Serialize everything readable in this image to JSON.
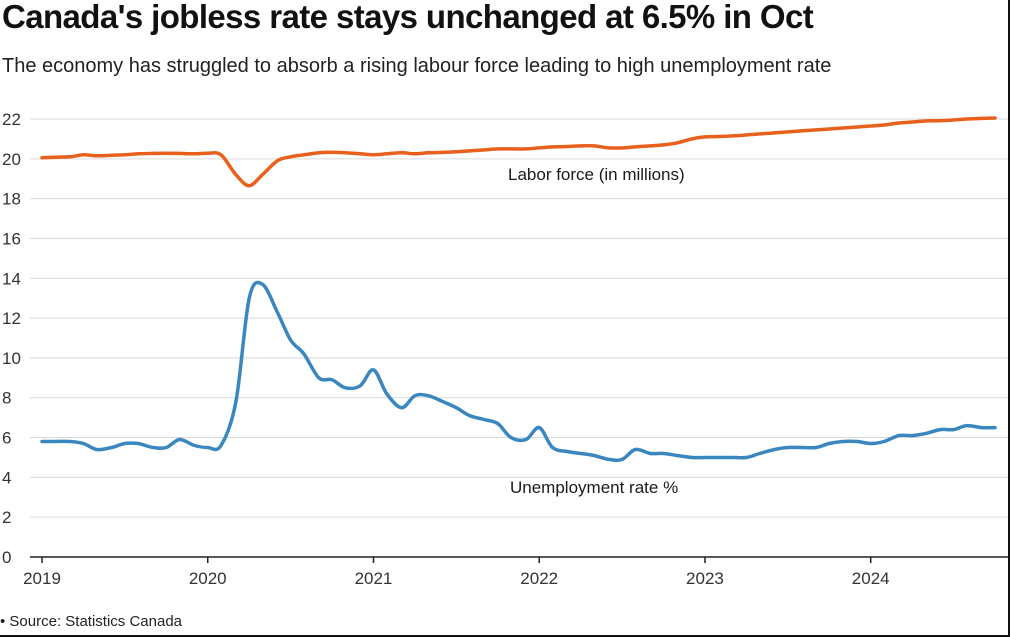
{
  "title": "Canada's jobless rate stays unchanged at 6.5% in Oct",
  "subtitle": "The economy has struggled to absorb a rising labour force leading to high unemployment rate",
  "source": "• Source: Statistics Canada",
  "colors": {
    "labor": "#e8601c",
    "unemployment": "#3a87c0",
    "grid": "#d9d9d9",
    "axis": "#222222"
  },
  "chart_data": {
    "type": "line",
    "grid": true,
    "ylim": [
      0,
      22
    ],
    "yticks": [
      0,
      2,
      4,
      6,
      8,
      10,
      12,
      14,
      16,
      18,
      20,
      22
    ],
    "xlim": [
      2019.0,
      2024.75
    ],
    "xticks": [
      "2019",
      "2020",
      "2021",
      "2022",
      "2023",
      "2024"
    ],
    "series": [
      {
        "name": "Labor force (in millions)",
        "color": "#e8601c",
        "x": [
          2019.0,
          2019.08,
          2019.17,
          2019.25,
          2019.33,
          2019.42,
          2019.5,
          2019.58,
          2019.67,
          2019.75,
          2019.83,
          2019.92,
          2020.0,
          2020.08,
          2020.17,
          2020.25,
          2020.33,
          2020.42,
          2020.5,
          2020.58,
          2020.67,
          2020.75,
          2020.83,
          2020.92,
          2021.0,
          2021.08,
          2021.17,
          2021.25,
          2021.33,
          2021.42,
          2021.5,
          2021.58,
          2021.67,
          2021.75,
          2021.83,
          2021.92,
          2022.0,
          2022.08,
          2022.17,
          2022.25,
          2022.33,
          2022.42,
          2022.5,
          2022.58,
          2022.67,
          2022.75,
          2022.83,
          2022.92,
          2023.0,
          2023.08,
          2023.17,
          2023.25,
          2023.33,
          2023.42,
          2023.5,
          2023.58,
          2023.67,
          2023.75,
          2023.83,
          2023.92,
          2024.0,
          2024.08,
          2024.17,
          2024.25,
          2024.33,
          2024.42,
          2024.5,
          2024.58,
          2024.67,
          2024.75
        ],
        "values": [
          20.05,
          20.08,
          20.1,
          20.2,
          20.15,
          20.18,
          20.2,
          20.25,
          20.27,
          20.28,
          20.27,
          20.25,
          20.28,
          20.2,
          19.2,
          18.65,
          19.2,
          19.9,
          20.1,
          20.2,
          20.3,
          20.33,
          20.3,
          20.25,
          20.2,
          20.25,
          20.3,
          20.25,
          20.3,
          20.32,
          20.35,
          20.4,
          20.45,
          20.5,
          20.5,
          20.5,
          20.55,
          20.6,
          20.62,
          20.65,
          20.65,
          20.55,
          20.55,
          20.6,
          20.65,
          20.7,
          20.8,
          21.0,
          21.1,
          21.12,
          21.15,
          21.2,
          21.25,
          21.3,
          21.35,
          21.4,
          21.45,
          21.5,
          21.55,
          21.6,
          21.65,
          21.7,
          21.8,
          21.85,
          21.9,
          21.92,
          21.95,
          22.0,
          22.03,
          22.05
        ]
      },
      {
        "name": "Unemployment rate %",
        "color": "#3a87c0",
        "x": [
          2019.0,
          2019.08,
          2019.17,
          2019.25,
          2019.33,
          2019.42,
          2019.5,
          2019.58,
          2019.67,
          2019.75,
          2019.83,
          2019.92,
          2020.0,
          2020.08,
          2020.17,
          2020.25,
          2020.33,
          2020.42,
          2020.5,
          2020.58,
          2020.67,
          2020.75,
          2020.83,
          2020.92,
          2021.0,
          2021.08,
          2021.17,
          2021.25,
          2021.33,
          2021.42,
          2021.5,
          2021.58,
          2021.67,
          2021.75,
          2021.83,
          2021.92,
          2022.0,
          2022.08,
          2022.17,
          2022.25,
          2022.33,
          2022.42,
          2022.5,
          2022.58,
          2022.67,
          2022.75,
          2022.83,
          2022.92,
          2023.0,
          2023.08,
          2023.17,
          2023.25,
          2023.33,
          2023.42,
          2023.5,
          2023.58,
          2023.67,
          2023.75,
          2023.83,
          2023.92,
          2024.0,
          2024.08,
          2024.17,
          2024.25,
          2024.33,
          2024.42,
          2024.5,
          2024.58,
          2024.67,
          2024.75
        ],
        "values": [
          5.8,
          5.8,
          5.8,
          5.7,
          5.4,
          5.5,
          5.7,
          5.7,
          5.5,
          5.5,
          5.9,
          5.6,
          5.5,
          5.6,
          7.8,
          13.0,
          13.7,
          12.3,
          10.9,
          10.2,
          9.0,
          8.9,
          8.5,
          8.6,
          9.4,
          8.2,
          7.5,
          8.1,
          8.1,
          7.8,
          7.5,
          7.1,
          6.9,
          6.7,
          6.0,
          5.9,
          6.5,
          5.5,
          5.3,
          5.2,
          5.1,
          4.9,
          4.9,
          5.4,
          5.2,
          5.2,
          5.1,
          5.0,
          5.0,
          5.0,
          5.0,
          5.0,
          5.2,
          5.4,
          5.5,
          5.5,
          5.5,
          5.7,
          5.8,
          5.8,
          5.7,
          5.8,
          6.1,
          6.1,
          6.2,
          6.4,
          6.4,
          6.6,
          6.5,
          6.5
        ]
      }
    ]
  }
}
